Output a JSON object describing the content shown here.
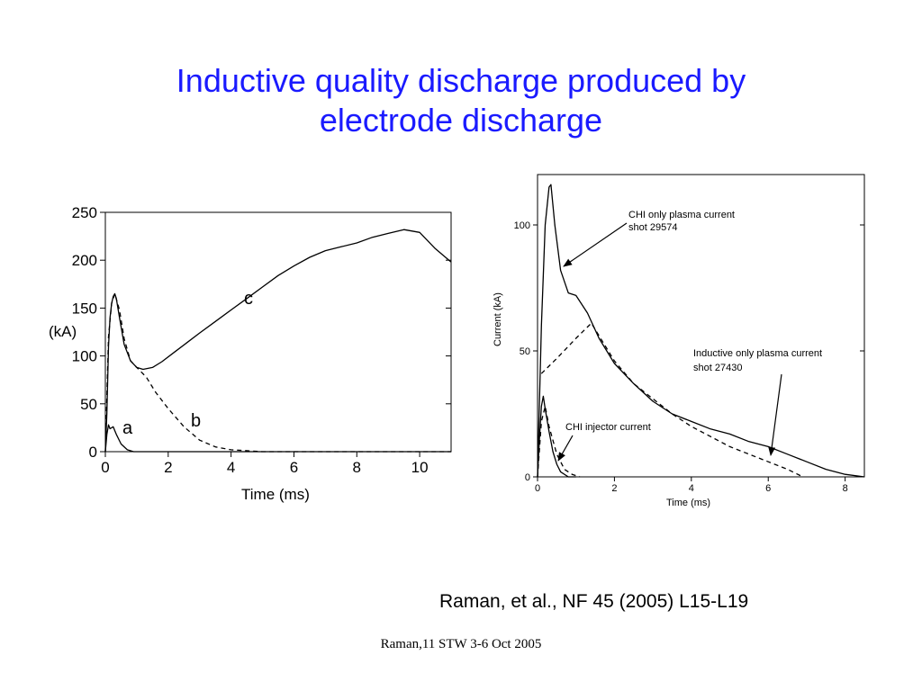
{
  "slide": {
    "title_line1": "Inductive quality discharge produced by",
    "title_line2": "electrode discharge",
    "citation": "Raman, et al., NF 45 (2005) L15-L19",
    "footer": "Raman,11 STW 3-6 Oct 2005",
    "title_color": "#1a1aff"
  },
  "chart_data": [
    {
      "type": "line",
      "title": "",
      "xlabel": "Time (ms)",
      "ylabel": "(kA)",
      "xlim": [
        0,
        11
      ],
      "ylim": [
        0,
        250
      ],
      "xticks": [
        0,
        2,
        4,
        6,
        8,
        10
      ],
      "yticks": [
        0,
        50,
        100,
        150,
        200,
        250
      ],
      "grid": false,
      "series": [
        {
          "name": "c",
          "style": "solid",
          "x": [
            0,
            0.05,
            0.1,
            0.15,
            0.2,
            0.25,
            0.3,
            0.35,
            0.45,
            0.6,
            0.8,
            1.0,
            1.2,
            1.5,
            1.8,
            2.2,
            2.6,
            3.0,
            3.5,
            4.0,
            4.5,
            5.0,
            5.5,
            6.0,
            6.5,
            7.0,
            7.5,
            8.0,
            8.5,
            9.0,
            9.5,
            10.0,
            10.5,
            11.0
          ],
          "y": [
            0,
            40,
            110,
            140,
            155,
            162,
            165,
            160,
            140,
            112,
            95,
            88,
            86,
            88,
            94,
            104,
            114,
            124,
            136,
            148,
            160,
            172,
            184,
            194,
            203,
            210,
            214,
            218,
            224,
            228,
            232,
            229,
            212,
            198
          ]
        },
        {
          "name": "b",
          "style": "dashed",
          "x": [
            0,
            0.1,
            0.2,
            0.3,
            0.45,
            0.6,
            0.8,
            1.0,
            1.3,
            1.6,
            2.0,
            2.5,
            3.0,
            3.5,
            4.0,
            4.5,
            5.0,
            11.0
          ],
          "y": [
            0,
            120,
            155,
            165,
            148,
            118,
            95,
            88,
            78,
            62,
            45,
            26,
            12,
            5,
            2,
            1,
            0,
            0
          ]
        },
        {
          "name": "a",
          "style": "solid",
          "x": [
            0,
            0.05,
            0.1,
            0.15,
            0.25,
            0.35,
            0.5,
            0.7,
            0.9,
            11.0
          ],
          "y": [
            0,
            18,
            28,
            24,
            26,
            18,
            8,
            2,
            0,
            0
          ]
        }
      ],
      "annotations": [
        "a",
        "b",
        "c"
      ]
    },
    {
      "type": "line",
      "title": "",
      "xlabel": "Time (ms)",
      "ylabel": "Current (kA)",
      "xlim": [
        0,
        8.5
      ],
      "ylim": [
        0,
        120
      ],
      "xticks": [
        0,
        2,
        4,
        6,
        8
      ],
      "yticks": [
        0,
        50,
        100
      ],
      "grid": false,
      "series": [
        {
          "name": "CHI only plasma current shot 29574",
          "style": "solid",
          "x": [
            0,
            0.1,
            0.2,
            0.3,
            0.35,
            0.45,
            0.6,
            0.8,
            1.0,
            1.3,
            1.6,
            2.0,
            2.5,
            3.0,
            3.5,
            4.0,
            4.5,
            5.0,
            5.5,
            6.0,
            6.5,
            7.0,
            7.5,
            8.0,
            8.5
          ],
          "y": [
            0,
            60,
            100,
            115,
            116,
            100,
            82,
            73,
            72,
            65,
            55,
            45,
            37,
            30,
            25,
            22,
            19,
            17,
            14,
            12,
            9,
            6,
            3,
            1,
            0
          ]
        },
        {
          "name": "Inductive only plasma current shot 27430",
          "style": "dashed",
          "x": [
            0.1,
            0.5,
            1.0,
            1.4,
            2.0,
            2.5,
            3.0,
            3.5,
            4.0,
            4.5,
            5.0,
            5.5,
            6.0,
            6.5,
            6.9
          ],
          "y": [
            41,
            47,
            55,
            61,
            46,
            37,
            31,
            25,
            20,
            16,
            12,
            9,
            6,
            3,
            0
          ]
        },
        {
          "name": "CHI injector current",
          "style": "solid",
          "x": [
            0,
            0.05,
            0.1,
            0.15,
            0.2,
            0.3,
            0.4,
            0.5,
            0.6,
            0.8,
            1.0
          ],
          "y": [
            0,
            15,
            28,
            32,
            27,
            18,
            10,
            5,
            2,
            0,
            0
          ]
        },
        {
          "name": "",
          "style": "dashed",
          "x": [
            0,
            0.1,
            0.2,
            0.3,
            0.5,
            0.7,
            0.9,
            1.1
          ],
          "y": [
            0,
            22,
            28,
            20,
            9,
            3,
            1,
            0
          ]
        }
      ],
      "annotations": [
        "CHI only plasma current",
        "shot 29574",
        "Inductive only plasma current",
        "shot 27430",
        "CHI injector current"
      ]
    }
  ]
}
